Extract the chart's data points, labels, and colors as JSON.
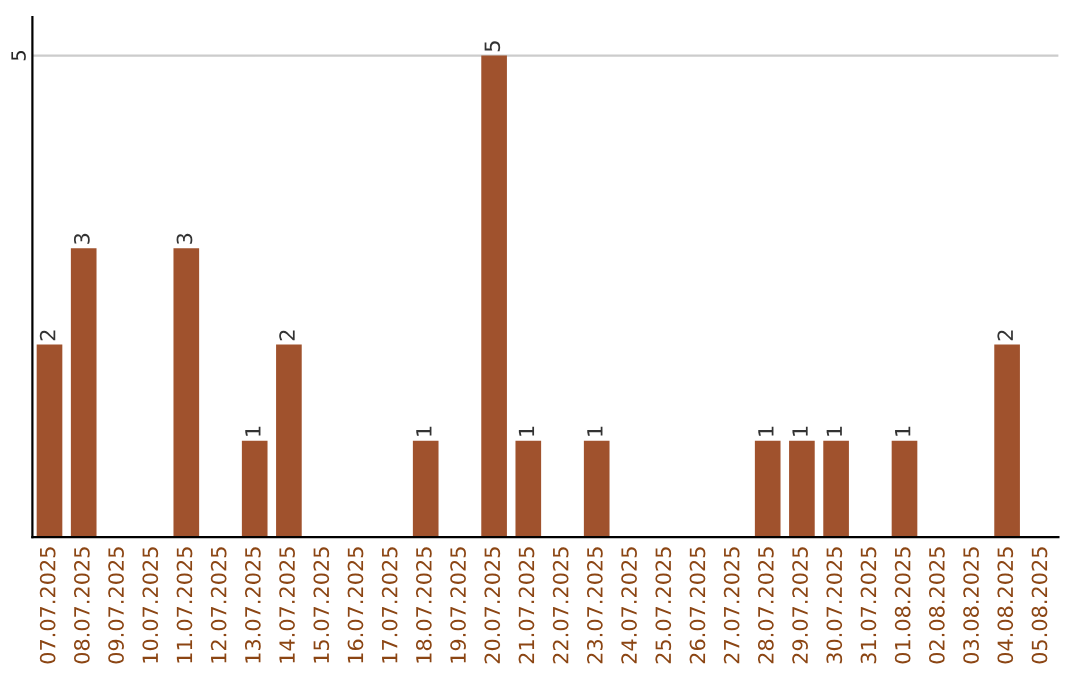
{
  "chart_data": {
    "type": "bar",
    "categories": [
      "07.07.2025",
      "08.07.2025",
      "09.07.2025",
      "10.07.2025",
      "11.07.2025",
      "12.07.2025",
      "13.07.2025",
      "14.07.2025",
      "15.07.2025",
      "16.07.2025",
      "17.07.2025",
      "18.07.2025",
      "19.07.2025",
      "20.07.2025",
      "21.07.2025",
      "22.07.2025",
      "23.07.2025",
      "24.07.2025",
      "25.07.2025",
      "26.07.2025",
      "27.07.2025",
      "28.07.2025",
      "29.07.2025",
      "30.07.2025",
      "31.07.2025",
      "01.08.2025",
      "02.08.2025",
      "03.08.2025",
      "04.08.2025",
      "05.08.2025"
    ],
    "values": [
      2,
      3,
      null,
      null,
      3,
      null,
      1,
      2,
      null,
      null,
      null,
      1,
      null,
      5,
      1,
      null,
      1,
      null,
      null,
      null,
      null,
      1,
      1,
      1,
      null,
      1,
      null,
      null,
      2,
      null
    ],
    "value_labels": [
      "2",
      "3",
      null,
      null,
      "3",
      null,
      "1",
      "2",
      null,
      null,
      null,
      "1",
      null,
      "5",
      "1",
      null,
      "1",
      null,
      null,
      null,
      null,
      "1",
      "1",
      "1",
      null,
      "1",
      null,
      null,
      "2",
      null
    ],
    "color": "#a0522d",
    "ylim": [
      0,
      5.4
    ],
    "yticks": [
      5
    ],
    "grid": "y"
  }
}
